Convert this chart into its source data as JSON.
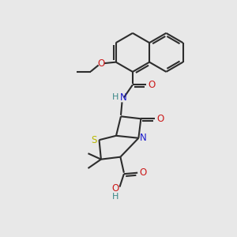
{
  "background_color": "#e8e8e8",
  "bond_color": "#2d2d2d",
  "n_color": "#1a1acc",
  "o_color": "#cc1a1a",
  "s_color": "#b8b800",
  "h_color": "#3a8888",
  "figsize": [
    3.0,
    3.0
  ],
  "dpi": 100,
  "xlim": [
    0,
    10
  ],
  "ylim": [
    0,
    10
  ]
}
